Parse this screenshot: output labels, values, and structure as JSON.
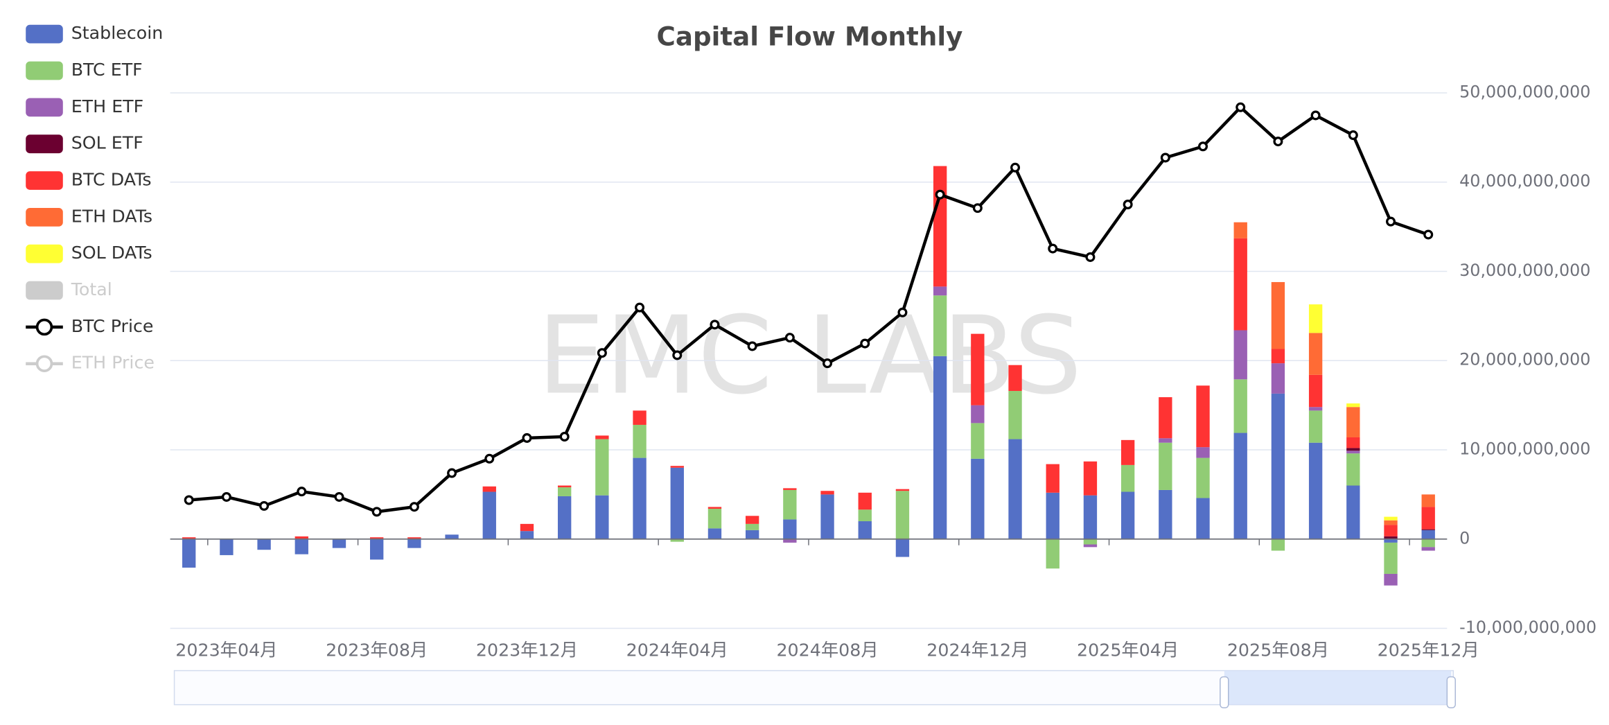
{
  "chart_data": {
    "type": "bar",
    "title": "Capital Flow Monthly",
    "watermark": "EMC LABS",
    "categories": [
      null,
      "2023年04月",
      null,
      null,
      null,
      "2023年08月",
      null,
      null,
      null,
      "2023年12月",
      null,
      null,
      null,
      "2024年04月",
      null,
      null,
      null,
      "2024年08月",
      null,
      null,
      null,
      "2024年12月",
      null,
      null,
      null,
      "2025年04月",
      null,
      null,
      null,
      "2025年08月",
      null,
      null,
      null,
      "2025年12月"
    ],
    "ylim": [
      -10000000000.0,
      50000000000.0
    ],
    "yticks": [
      {
        "value": -10000000000.0,
        "label": "-10,000,000,000"
      },
      0,
      {
        "value": 10000000000.0,
        "label": "10,000,000,000"
      },
      {
        "value": 20000000000.0,
        "label": "20,000,000,000"
      },
      {
        "value": 30000000000.0,
        "label": "30,000,000,000"
      },
      {
        "value": 40000000000.0,
        "label": "40,000,000,000"
      },
      {
        "value": 50000000000.0,
        "label": "50,000,000,000"
      }
    ],
    "y2lim": [
      0,
      119000
    ],
    "grid": true,
    "stacked": true,
    "legend": "left",
    "series": [
      {
        "name": "Stablecoin",
        "color": "#5470c6",
        "values": [
          -3200000000.0,
          -1800000000.0,
          -1200000000.0,
          -1700000000.0,
          -1000000000.0,
          -2300000000.0,
          -1000000000.0,
          500000000.0,
          5300000000.0,
          900000000.0,
          4800000000.0,
          4900000000.0,
          9100000000.0,
          8000000000.0,
          1200000000.0,
          1000000000.0,
          2200000000.0,
          5000000000.0,
          2000000000.0,
          -2000000000.0,
          20500000000.0,
          9000000000.0,
          11200000000.0,
          5200000000.0,
          4900000000.0,
          5300000000.0,
          5500000000.0,
          4600000000.0,
          11900000000.0,
          16300000000.0,
          10800000000.0,
          6000000000.0,
          -400000000.0,
          1000000000.0
        ]
      },
      {
        "name": "BTC ETF",
        "color": "#91cc75",
        "values": [
          0,
          0,
          0,
          0,
          0,
          0,
          0,
          0,
          0,
          0,
          1000000000.0,
          6300000000.0,
          3700000000.0,
          -300000000.0,
          2200000000.0,
          700000000.0,
          3300000000.0,
          0,
          1300000000.0,
          5400000000.0,
          6800000000.0,
          4000000000.0,
          5400000000.0,
          -3300000000.0,
          -600000000.0,
          3000000000.0,
          5300000000.0,
          4500000000.0,
          6000000000.0,
          -1300000000.0,
          3600000000.0,
          3600000000.0,
          -3500000000.0,
          -900000000.0
        ]
      },
      {
        "name": "ETH ETF",
        "color": "#9a60b4",
        "values": [
          0,
          0,
          0,
          0,
          0,
          0,
          0,
          0,
          0,
          0,
          0,
          0,
          0,
          0,
          0,
          0,
          -400000000.0,
          0,
          0,
          0,
          1000000000.0,
          2000000000.0,
          0,
          0,
          -300000000.0,
          0,
          500000000.0,
          1200000000.0,
          5500000000.0,
          3400000000.0,
          400000000.0,
          300000000.0,
          -1300000000.0,
          -400000000.0
        ]
      },
      {
        "name": "SOL ETF",
        "color": "#6b0030",
        "values": [
          0,
          0,
          0,
          0,
          0,
          0,
          0,
          0,
          0,
          0,
          0,
          0,
          0,
          0,
          0,
          0,
          0,
          0,
          0,
          0,
          0,
          0,
          0,
          0,
          0,
          0,
          0,
          0,
          0,
          0,
          0,
          300000000.0,
          300000000.0,
          100000000.0
        ]
      },
      {
        "name": "BTC DATs",
        "color": "#ff3333",
        "values": [
          200000000.0,
          0,
          0,
          300000000.0,
          0,
          200000000.0,
          200000000.0,
          0,
          600000000.0,
          800000000.0,
          200000000.0,
          400000000.0,
          1600000000.0,
          200000000.0,
          200000000.0,
          900000000.0,
          200000000.0,
          400000000.0,
          1900000000.0,
          200000000.0,
          13500000000.0,
          8000000000.0,
          2900000000.0,
          3200000000.0,
          3800000000.0,
          2800000000.0,
          4600000000.0,
          6900000000.0,
          10300000000.0,
          1600000000.0,
          3600000000.0,
          1200000000.0,
          1300000000.0,
          2500000000.0
        ]
      },
      {
        "name": "ETH DATs",
        "color": "#ff6b35",
        "values": [
          0,
          0,
          0,
          0,
          0,
          0,
          0,
          0,
          0,
          0,
          0,
          0,
          0,
          0,
          0,
          0,
          0,
          0,
          0,
          0,
          0,
          0,
          0,
          0,
          0,
          0,
          0,
          0,
          1800000000.0,
          7500000000.0,
          4700000000.0,
          3400000000.0,
          500000000.0,
          1400000000.0
        ]
      },
      {
        "name": "SOL DATs",
        "color": "#ffff33",
        "values": [
          0,
          0,
          0,
          0,
          0,
          0,
          0,
          0,
          0,
          0,
          0,
          0,
          0,
          0,
          0,
          0,
          0,
          0,
          0,
          0,
          0,
          0,
          0,
          0,
          0,
          0,
          0,
          0,
          0,
          0,
          3200000000.0,
          400000000.0,
          400000000.0,
          0
        ]
      },
      {
        "name": "BTC Price",
        "color": "#000000",
        "type": "line",
        "axis": "y2",
        "values": [
          28500,
          29200,
          27200,
          30400,
          29200,
          25900,
          27000,
          34500,
          37700,
          42300,
          42600,
          61200,
          71300,
          60700,
          67500,
          62700,
          64600,
          58900,
          63300,
          70200,
          96400,
          93400,
          102400,
          84400,
          82500,
          94200,
          104600,
          107100,
          115800,
          108200,
          114000,
          109600,
          90400,
          87500
        ]
      }
    ],
    "hidden_series": [
      {
        "name": "Total",
        "color": "#cccccc",
        "type": "bar"
      },
      {
        "name": "ETH Price",
        "color": "#cccccc",
        "type": "line"
      }
    ]
  }
}
